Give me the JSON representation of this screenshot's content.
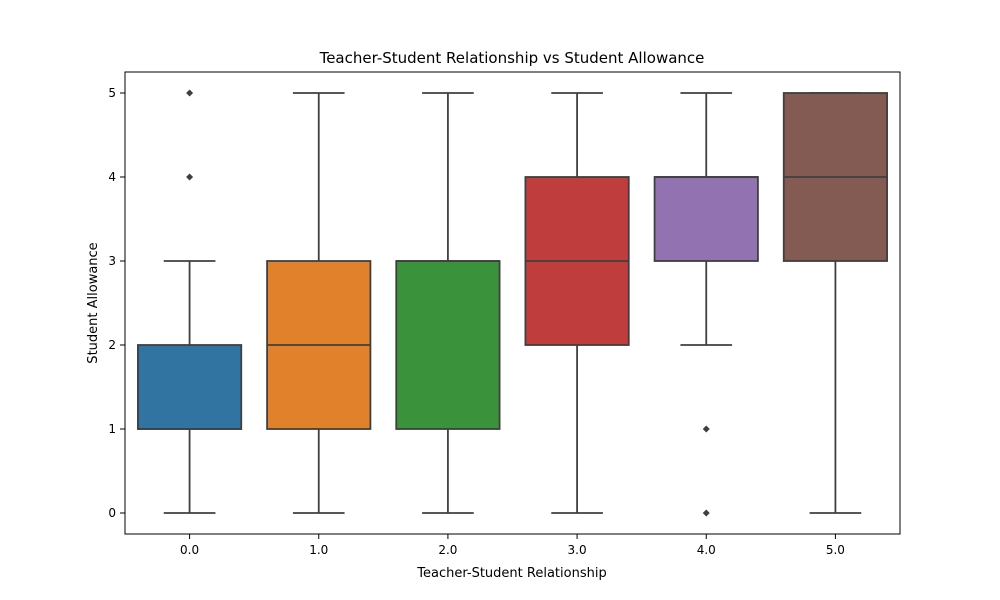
{
  "chart_data": {
    "type": "box",
    "title": "Teacher-Student Relationship vs Student Allowance",
    "xlabel": "Teacher-Student Relationship",
    "ylabel": "Student Allowance",
    "categories": [
      "0.0",
      "1.0",
      "2.0",
      "3.0",
      "4.0",
      "5.0"
    ],
    "yticks": [
      "0",
      "1",
      "2",
      "3",
      "4",
      "5"
    ],
    "ylim": [
      -0.25,
      5.25
    ],
    "grid": false,
    "boxes": [
      {
        "category": "0.0",
        "whisker_low": 0,
        "q1": 1,
        "median": 1,
        "q3": 2,
        "whisker_high": 3,
        "outliers": [
          4,
          5
        ],
        "color": "#3274a1"
      },
      {
        "category": "1.0",
        "whisker_low": 0,
        "q1": 1,
        "median": 2,
        "q3": 3,
        "whisker_high": 5,
        "outliers": [],
        "color": "#e1812c"
      },
      {
        "category": "2.0",
        "whisker_low": 0,
        "q1": 1,
        "median": 3,
        "q3": 3,
        "whisker_high": 5,
        "outliers": [],
        "color": "#3a923a"
      },
      {
        "category": "3.0",
        "whisker_low": 0,
        "q1": 2,
        "median": 3,
        "q3": 4,
        "whisker_high": 5,
        "outliers": [],
        "color": "#c03d3e"
      },
      {
        "category": "4.0",
        "whisker_low": 2,
        "q1": 3,
        "median": 4,
        "q3": 4,
        "whisker_high": 5,
        "outliers": [
          0,
          1
        ],
        "color": "#9372b2"
      },
      {
        "category": "5.0",
        "whisker_low": 0,
        "q1": 3,
        "median": 4,
        "q3": 5,
        "whisker_high": 5,
        "outliers": [],
        "color": "#845b53"
      }
    ],
    "line_color": "#3f3f3f"
  }
}
